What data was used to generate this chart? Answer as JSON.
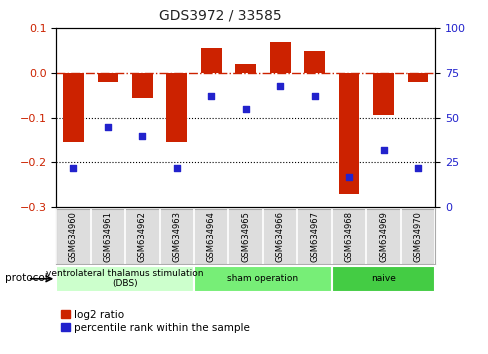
{
  "title": "GDS3972 / 33585",
  "samples": [
    "GSM634960",
    "GSM634961",
    "GSM634962",
    "GSM634963",
    "GSM634964",
    "GSM634965",
    "GSM634966",
    "GSM634967",
    "GSM634968",
    "GSM634969",
    "GSM634970"
  ],
  "log2_ratio": [
    -0.155,
    -0.02,
    -0.055,
    -0.155,
    0.055,
    0.02,
    0.07,
    0.05,
    -0.27,
    -0.095,
    -0.02
  ],
  "percentile_rank": [
    22,
    45,
    40,
    22,
    62,
    55,
    68,
    62,
    17,
    32,
    22
  ],
  "bar_color": "#cc2200",
  "dot_color": "#2222cc",
  "ylim_left": [
    -0.3,
    0.1
  ],
  "ylim_right": [
    0,
    100
  ],
  "yticks_left": [
    -0.3,
    -0.2,
    -0.1,
    0.0,
    0.1
  ],
  "yticks_right": [
    0,
    25,
    50,
    75,
    100
  ],
  "protocol_groups": [
    {
      "label": "ventrolateral thalamus stimulation\n(DBS)",
      "start": 0,
      "end": 3,
      "color": "#ccffcc"
    },
    {
      "label": "sham operation",
      "start": 4,
      "end": 7,
      "color": "#77ee77"
    },
    {
      "label": "naive",
      "start": 8,
      "end": 10,
      "color": "#44cc44"
    }
  ],
  "legend_bar_label": "log2 ratio",
  "legend_dot_label": "percentile rank within the sample",
  "hline_color": "#cc2200",
  "dotline_color": "#000000",
  "bg_color": "#ffffff",
  "title_fontsize": 10,
  "tick_fontsize": 8,
  "sample_fontsize": 6,
  "legend_fontsize": 7.5
}
